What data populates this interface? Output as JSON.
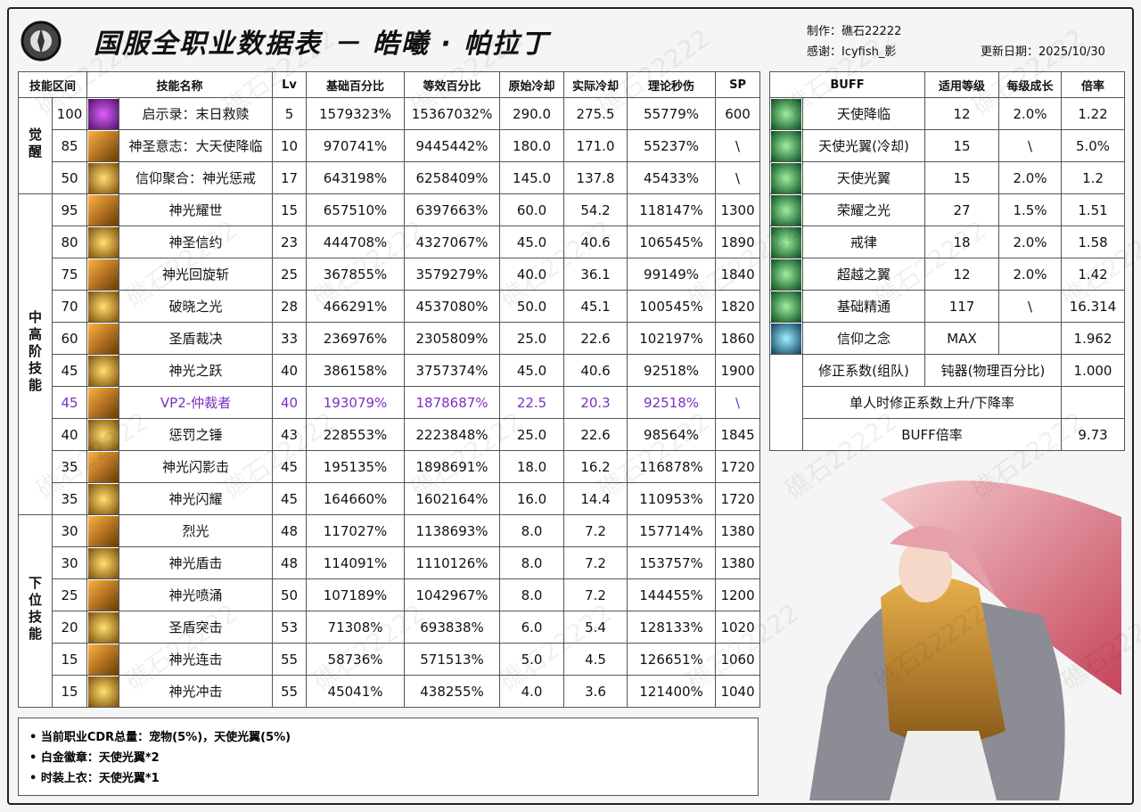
{
  "header": {
    "title": "国服全职业数据表 － 皓曦 · 帕拉丁",
    "author": "制作：礁石22222",
    "thanks": "感谢：Icyfish_影",
    "updated": "更新日期：2025/10/30",
    "watermark": "礁石22222"
  },
  "skills": {
    "headers": [
      "技能区间",
      "技能名称",
      "Lv",
      "基础百分比",
      "等效百分比",
      "原始冷却",
      "实际冷却",
      "理论秒伤",
      "SP"
    ],
    "groups": [
      {
        "label": "觉醒",
        "rows": [
          {
            "level": "100",
            "name": "启示录：末日救赎",
            "lv": "5",
            "base": "1579323%",
            "equiv": "15367032%",
            "cd": "290.0",
            "real_cd": "275.5",
            "dps": "55779%",
            "sp": "600"
          },
          {
            "level": "85",
            "name": "神圣意志：大天使降临",
            "lv": "10",
            "base": "970741%",
            "equiv": "9445442%",
            "cd": "180.0",
            "real_cd": "171.0",
            "dps": "55237%",
            "sp": "\\"
          },
          {
            "level": "50",
            "name": "信仰聚合：神光惩戒",
            "lv": "17",
            "base": "643198%",
            "equiv": "6258409%",
            "cd": "145.0",
            "real_cd": "137.8",
            "dps": "45433%",
            "sp": "\\"
          }
        ]
      },
      {
        "label": "中高阶技能",
        "rows": [
          {
            "level": "95",
            "name": "神光耀世",
            "lv": "15",
            "base": "657510%",
            "equiv": "6397663%",
            "cd": "60.0",
            "real_cd": "54.2",
            "dps": "118147%",
            "sp": "1300"
          },
          {
            "level": "80",
            "name": "神圣信约",
            "lv": "23",
            "base": "444708%",
            "equiv": "4327067%",
            "cd": "45.0",
            "real_cd": "40.6",
            "dps": "106545%",
            "sp": "1890"
          },
          {
            "level": "75",
            "name": "神光回旋斩",
            "lv": "25",
            "base": "367855%",
            "equiv": "3579279%",
            "cd": "40.0",
            "real_cd": "36.1",
            "dps": "99149%",
            "sp": "1840"
          },
          {
            "level": "70",
            "name": "破晓之光",
            "lv": "28",
            "base": "466291%",
            "equiv": "4537080%",
            "cd": "50.0",
            "real_cd": "45.1",
            "dps": "100545%",
            "sp": "1820"
          },
          {
            "level": "60",
            "name": "圣盾裁决",
            "lv": "33",
            "base": "236976%",
            "equiv": "2305809%",
            "cd": "25.0",
            "real_cd": "22.6",
            "dps": "102197%",
            "sp": "1860"
          },
          {
            "level": "45",
            "name": "神光之跃",
            "lv": "40",
            "base": "386158%",
            "equiv": "3757374%",
            "cd": "45.0",
            "real_cd": "40.6",
            "dps": "92518%",
            "sp": "1900"
          },
          {
            "level": "45",
            "name": "VP2-仲裁者",
            "lv": "40",
            "base": "193079%",
            "equiv": "1878687%",
            "cd": "22.5",
            "real_cd": "20.3",
            "dps": "92518%",
            "sp": "\\",
            "color": "#7b2fc4"
          },
          {
            "level": "40",
            "name": "惩罚之锤",
            "lv": "43",
            "base": "228553%",
            "equiv": "2223848%",
            "cd": "25.0",
            "real_cd": "22.6",
            "dps": "98564%",
            "sp": "1845"
          },
          {
            "level": "35",
            "name": "神光闪影击",
            "lv": "45",
            "base": "195135%",
            "equiv": "1898691%",
            "cd": "18.0",
            "real_cd": "16.2",
            "dps": "116878%",
            "sp": "1720"
          },
          {
            "level": "35",
            "name": "神光闪耀",
            "lv": "45",
            "base": "164660%",
            "equiv": "1602164%",
            "cd": "16.0",
            "real_cd": "14.4",
            "dps": "110953%",
            "sp": "1720"
          }
        ]
      },
      {
        "label": "下位技能",
        "rows": [
          {
            "level": "30",
            "name": "烈光",
            "lv": "48",
            "base": "117027%",
            "equiv": "1138693%",
            "cd": "8.0",
            "real_cd": "7.2",
            "dps": "157714%",
            "sp": "1380"
          },
          {
            "level": "30",
            "name": "神光盾击",
            "lv": "48",
            "base": "114091%",
            "equiv": "1110126%",
            "cd": "8.0",
            "real_cd": "7.2",
            "dps": "153757%",
            "sp": "1380"
          },
          {
            "level": "25",
            "name": "神光喷涌",
            "lv": "50",
            "base": "107189%",
            "equiv": "1042967%",
            "cd": "8.0",
            "real_cd": "7.2",
            "dps": "144455%",
            "sp": "1200"
          },
          {
            "level": "20",
            "name": "圣盾突击",
            "lv": "53",
            "base": "71308%",
            "equiv": "693838%",
            "cd": "6.0",
            "real_cd": "5.4",
            "dps": "128133%",
            "sp": "1020"
          },
          {
            "level": "15",
            "name": "神光连击",
            "lv": "55",
            "base": "58736%",
            "equiv": "571513%",
            "cd": "5.0",
            "real_cd": "4.5",
            "dps": "126651%",
            "sp": "1060"
          },
          {
            "level": "15",
            "name": "神光冲击",
            "lv": "55",
            "base": "45041%",
            "equiv": "438255%",
            "cd": "4.0",
            "real_cd": "3.6",
            "dps": "121400%",
            "sp": "1040"
          }
        ]
      }
    ]
  },
  "buffs": {
    "headers": [
      "BUFF",
      "适用等级",
      "每级成长",
      "倍率"
    ],
    "rows": [
      {
        "name": "天使降临",
        "level": "12",
        "growth": "2.0%",
        "rate": "1.22"
      },
      {
        "name": "天使光翼(冷却)",
        "level": "15",
        "growth": "\\",
        "rate": "5.0%"
      },
      {
        "name": "天使光翼",
        "level": "15",
        "growth": "2.0%",
        "rate": "1.2"
      },
      {
        "name": "荣耀之光",
        "level": "27",
        "growth": "1.5%",
        "rate": "1.51"
      },
      {
        "name": "戒律",
        "level": "18",
        "growth": "2.0%",
        "rate": "1.58"
      },
      {
        "name": "超越之翼",
        "level": "12",
        "growth": "2.0%",
        "rate": "1.42"
      },
      {
        "name": "基础精通",
        "level": "117",
        "growth": "\\",
        "rate": "16.314"
      },
      {
        "name": "信仰之念",
        "level": "MAX",
        "rate": "1.962"
      }
    ],
    "summary": [
      {
        "label": "修正系数(组队)",
        "value": "钝器(物理百分比)",
        "rate": "1.000"
      },
      {
        "label": "单人时修正系数上升/下降率"
      },
      {
        "label": "BUFF倍率",
        "rate": "9.73"
      }
    ]
  },
  "notes": [
    "当前职业CDR总量：宠物(5%)，天使光翼(5%)",
    "白金徽章：天使光翼*2",
    "时装上衣：天使光翼*1"
  ]
}
